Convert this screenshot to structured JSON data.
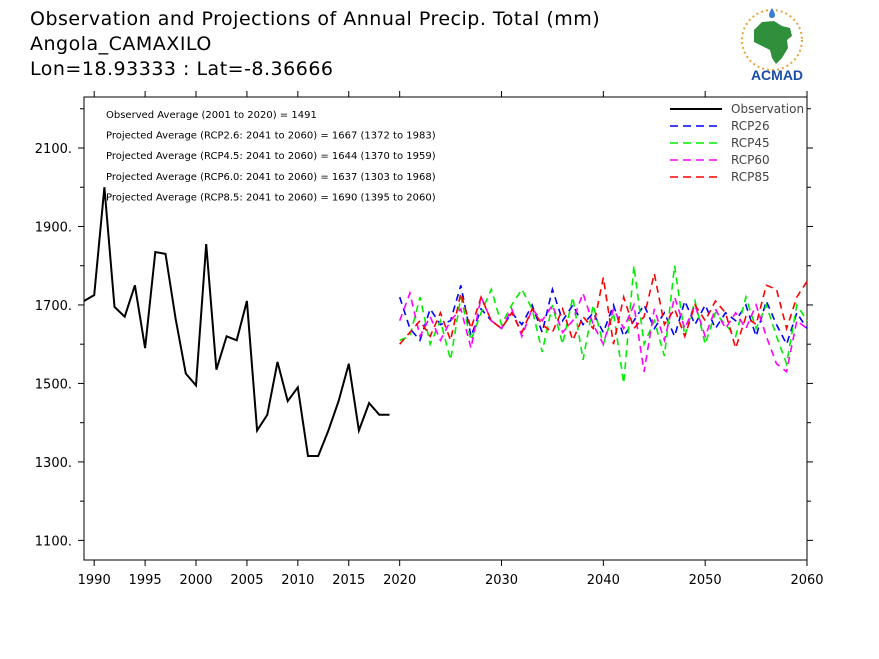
{
  "header": {
    "title_line1": "Observation and Projections of Annual Precip. Total (mm)",
    "title_line2": "Angola_CAMAXILO",
    "title_line3": "Lon=18.93333 : Lat=-8.36666"
  },
  "logo": {
    "text": "ACMAD",
    "icon": "africa-map-logo-icon"
  },
  "colors": {
    "observation": "#000000",
    "rcp26": "#0000ff",
    "rcp45": "#00ee00",
    "rcp60": "#ff00ff",
    "rcp85": "#ff0000"
  },
  "chart_data": {
    "type": "line",
    "xlim": [
      1989,
      2060
    ],
    "ylim": [
      1050,
      2230
    ],
    "x_ticks": [
      1990,
      1995,
      2000,
      2005,
      2010,
      2015,
      2020,
      2030,
      2040,
      2050,
      2060
    ],
    "y_ticks": [
      1100,
      1300,
      1500,
      1700,
      1900,
      2100
    ],
    "y_tick_labels": [
      "1100.",
      "1300.",
      "1500.",
      "1700.",
      "1900.",
      "2100."
    ],
    "annotations": [
      "Observed Average (2001 to 2020) = 1491",
      "Projected Average (RCP2.6: 2041 to 2060) = 1667 (1372 to 1983)",
      "Projected Average (RCP4.5: 2041 to 2060) = 1644 (1370 to 1959)",
      "Projected Average (RCP6.0: 2041 to 2060) = 1637 (1303 to 1968)",
      "Projected Average (RCP8.5: 2041 to 2060) = 1690 (1395 to 2060)"
    ],
    "legend_position": "top-right",
    "series": [
      {
        "name": "Observation",
        "style": "solid",
        "x": [
          1989,
          1990,
          1991,
          1992,
          1993,
          1994,
          1995,
          1996,
          1997,
          1998,
          1999,
          2000,
          2001,
          2002,
          2003,
          2004,
          2005,
          2006,
          2007,
          2008,
          2009,
          2010,
          2011,
          2012,
          2013,
          2014,
          2015,
          2016,
          2017,
          2018,
          2019
        ],
        "values": [
          1710,
          1725,
          2000,
          1695,
          1670,
          1750,
          1590,
          1835,
          1830,
          1665,
          1525,
          1495,
          1855,
          1535,
          1620,
          1610,
          1710,
          1380,
          1420,
          1555,
          1455,
          1490,
          1315,
          1315,
          1380,
          1455,
          1550,
          1380,
          1450,
          1420,
          1420
        ]
      },
      {
        "name": "RCP26",
        "style": "dashed",
        "x": [
          2020,
          2021,
          2022,
          2023,
          2024,
          2025,
          2026,
          2027,
          2028,
          2029,
          2030,
          2031,
          2032,
          2033,
          2034,
          2035,
          2036,
          2037,
          2038,
          2039,
          2040,
          2041,
          2042,
          2043,
          2044,
          2045,
          2046,
          2047,
          2048,
          2049,
          2050,
          2051,
          2052,
          2053,
          2054,
          2055,
          2056,
          2057,
          2058,
          2059,
          2060
        ],
        "values": [
          1720,
          1640,
          1610,
          1690,
          1650,
          1660,
          1750,
          1620,
          1690,
          1660,
          1640,
          1680,
          1650,
          1700,
          1630,
          1740,
          1660,
          1700,
          1650,
          1680,
          1630,
          1700,
          1620,
          1660,
          1700,
          1640,
          1680,
          1620,
          1710,
          1650,
          1700,
          1640,
          1680,
          1660,
          1700,
          1620,
          1710,
          1650,
          1600,
          1680,
          1640
        ]
      },
      {
        "name": "RCP45",
        "style": "dashed",
        "x": [
          2020,
          2021,
          2022,
          2023,
          2024,
          2025,
          2026,
          2027,
          2028,
          2029,
          2030,
          2031,
          2032,
          2033,
          2034,
          2035,
          2036,
          2037,
          2038,
          2039,
          2040,
          2041,
          2042,
          2043,
          2044,
          2045,
          2046,
          2047,
          2048,
          2049,
          2050,
          2051,
          2052,
          2053,
          2054,
          2055,
          2056,
          2057,
          2058,
          2059,
          2060
        ],
        "values": [
          1610,
          1620,
          1720,
          1600,
          1660,
          1560,
          1720,
          1610,
          1680,
          1740,
          1650,
          1700,
          1740,
          1690,
          1580,
          1700,
          1600,
          1720,
          1560,
          1700,
          1600,
          1680,
          1500,
          1800,
          1600,
          1660,
          1570,
          1800,
          1620,
          1710,
          1600,
          1680,
          1650,
          1620,
          1720,
          1640,
          1700,
          1620,
          1550,
          1700,
          1660
        ]
      },
      {
        "name": "RCP60",
        "style": "dashed",
        "x": [
          2020,
          2021,
          2022,
          2023,
          2024,
          2025,
          2026,
          2027,
          2028,
          2029,
          2030,
          2031,
          2032,
          2033,
          2034,
          2035,
          2036,
          2037,
          2038,
          2039,
          2040,
          2041,
          2042,
          2043,
          2044,
          2045,
          2046,
          2047,
          2048,
          2049,
          2050,
          2051,
          2052,
          2053,
          2054,
          2055,
          2056,
          2057,
          2058,
          2059,
          2060
        ],
        "values": [
          1660,
          1730,
          1620,
          1670,
          1610,
          1660,
          1690,
          1590,
          1720,
          1660,
          1640,
          1690,
          1620,
          1690,
          1660,
          1700,
          1630,
          1660,
          1730,
          1650,
          1600,
          1690,
          1640,
          1700,
          1530,
          1690,
          1610,
          1720,
          1640,
          1700,
          1620,
          1690,
          1640,
          1680,
          1640,
          1700,
          1620,
          1550,
          1530,
          1660,
          1640
        ]
      },
      {
        "name": "RCP85",
        "style": "dashed",
        "x": [
          2020,
          2021,
          2022,
          2023,
          2024,
          2025,
          2026,
          2027,
          2028,
          2029,
          2030,
          2031,
          2032,
          2033,
          2034,
          2035,
          2036,
          2037,
          2038,
          2039,
          2040,
          2041,
          2042,
          2043,
          2044,
          2045,
          2046,
          2047,
          2048,
          2049,
          2050,
          2051,
          2052,
          2053,
          2054,
          2055,
          2056,
          2057,
          2058,
          2059,
          2060
        ],
        "values": [
          1600,
          1630,
          1660,
          1620,
          1680,
          1610,
          1730,
          1640,
          1720,
          1660,
          1640,
          1680,
          1630,
          1690,
          1650,
          1630,
          1690,
          1610,
          1670,
          1640,
          1770,
          1600,
          1720,
          1640,
          1670,
          1780,
          1650,
          1690,
          1620,
          1700,
          1660,
          1710,
          1680,
          1590,
          1670,
          1650,
          1750,
          1740,
          1640,
          1720,
          1760
        ]
      }
    ]
  }
}
